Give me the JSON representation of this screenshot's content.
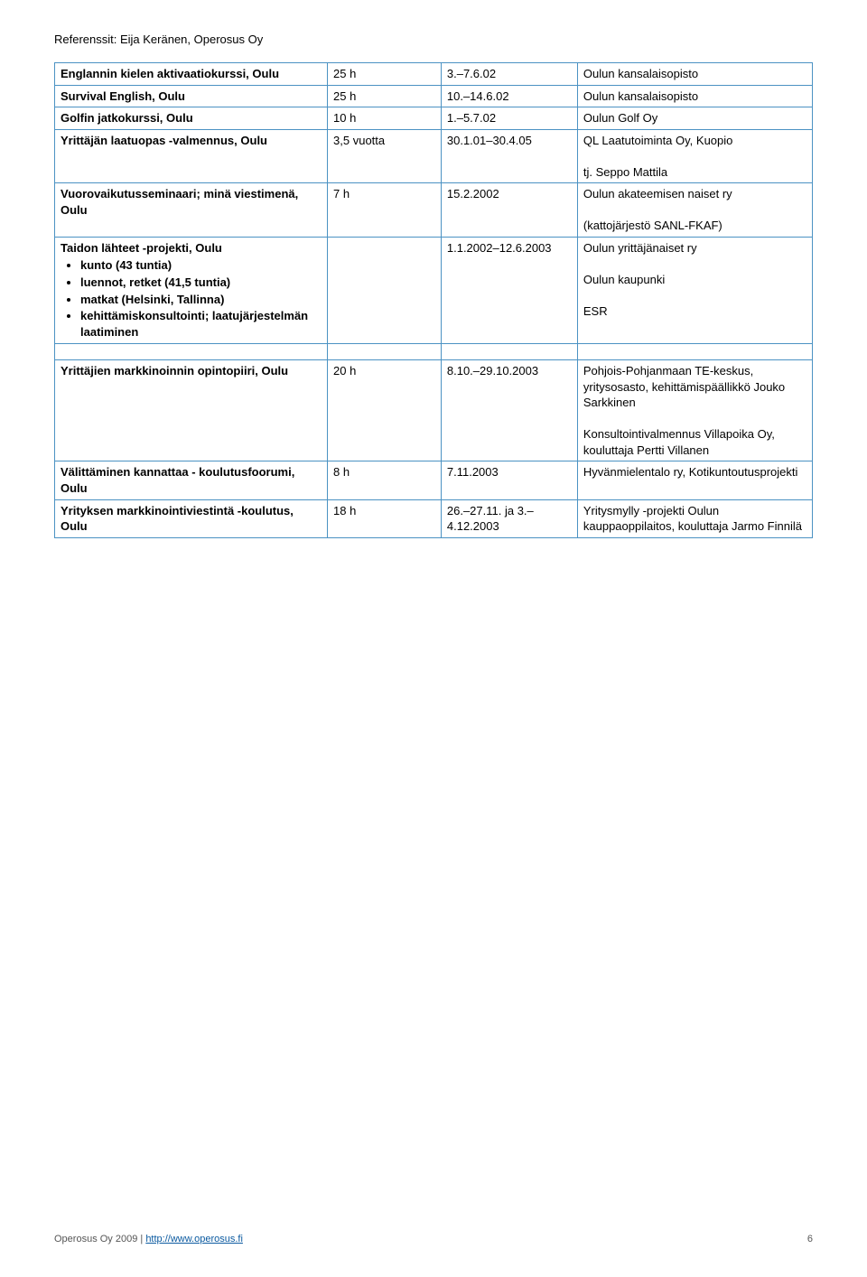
{
  "header": {
    "text": "Referenssit: Eija Keränen, Operosus Oy"
  },
  "colors": {
    "border": "#4b92c3",
    "link": "#0b5aa0",
    "text": "#000000",
    "background": "#ffffff"
  },
  "table": {
    "columns_pct": [
      36,
      15,
      18,
      31
    ],
    "rows": [
      {
        "c1": {
          "bold": "Englannin kielen aktivaatiokurssi, Oulu"
        },
        "c2": "25 h",
        "c3": "3.–7.6.02",
        "c4": "Oulun kansalaisopisto"
      },
      {
        "c1": {
          "bold": "Survival English, Oulu"
        },
        "c2": "25 h",
        "c3": "10.–14.6.02",
        "c4": "Oulun kansalaisopisto"
      },
      {
        "c1": {
          "bold": "Golfin jatkokurssi, Oulu"
        },
        "c2": "10 h",
        "c3": "1.–5.7.02",
        "c4": "Oulun Golf Oy"
      },
      {
        "c1": {
          "bold": "Yrittäjän laatuopas -valmennus, Oulu"
        },
        "c2": "3,5 vuotta",
        "c3": "30.1.01–30.4.05",
        "c4": "QL Laatutoiminta Oy, Kuopio",
        "c4_extra": "tj. Seppo Mattila"
      },
      {
        "c1": {
          "bold": "Vuorovaikutusseminaari; minä viestimenä, Oulu"
        },
        "c2": "7 h",
        "c3": "15.2.2002",
        "c4": "Oulun akateemisen naiset ry",
        "c4_extra": "(kattojärjestö SANL-FKAF)"
      },
      {
        "c1_title": "Taidon lähteet -projekti, Oulu",
        "c1_bullets": [
          "kunto (43 tuntia)",
          "luennot, retket (41,5 tuntia)",
          "matkat (Helsinki, Tallinna)",
          "kehittämiskonsultointi; laatujärjestelmän laatiminen"
        ],
        "c2": "",
        "c3": "1.1.2002–12.6.2003",
        "c4_lines": [
          "Oulun yrittäjänaiset ry",
          "",
          "Oulun kaupunki",
          "",
          "ESR"
        ]
      },
      {
        "spacer": true
      },
      {
        "c1": {
          "bold": "Yrittäjien markkinoinnin opintopiiri, Oulu"
        },
        "c2": "20 h",
        "c3": "8.10.–29.10.2003",
        "c4": "Pohjois-Pohjanmaan TE-keskus, yritysosasto, kehittämispäällikkö Jouko Sarkkinen",
        "c4_extra": "Konsultointivalmennus Villapoika Oy, kouluttaja Pertti Villanen"
      },
      {
        "c1": {
          "bold": "Välittäminen kannattaa - koulutusfoorumi, Oulu"
        },
        "c2": "8 h",
        "c3": "7.11.2003",
        "c4": "Hyvänmielentalo ry, Kotikuntoutusprojekti"
      },
      {
        "c1": {
          "bold": "Yrityksen markkinointiviestintä -koulutus, Oulu"
        },
        "c2": "18 h",
        "c3": "26.–27.11. ja 3.–4.12.2003",
        "c4": "Yritysmylly -projekti Oulun kauppaoppilaitos, kouluttaja Jarmo Finnilä"
      }
    ]
  },
  "footer": {
    "left_text": "Operosus Oy 2009 | ",
    "left_link": "http://www.operosus.fi",
    "page_number": "6"
  }
}
